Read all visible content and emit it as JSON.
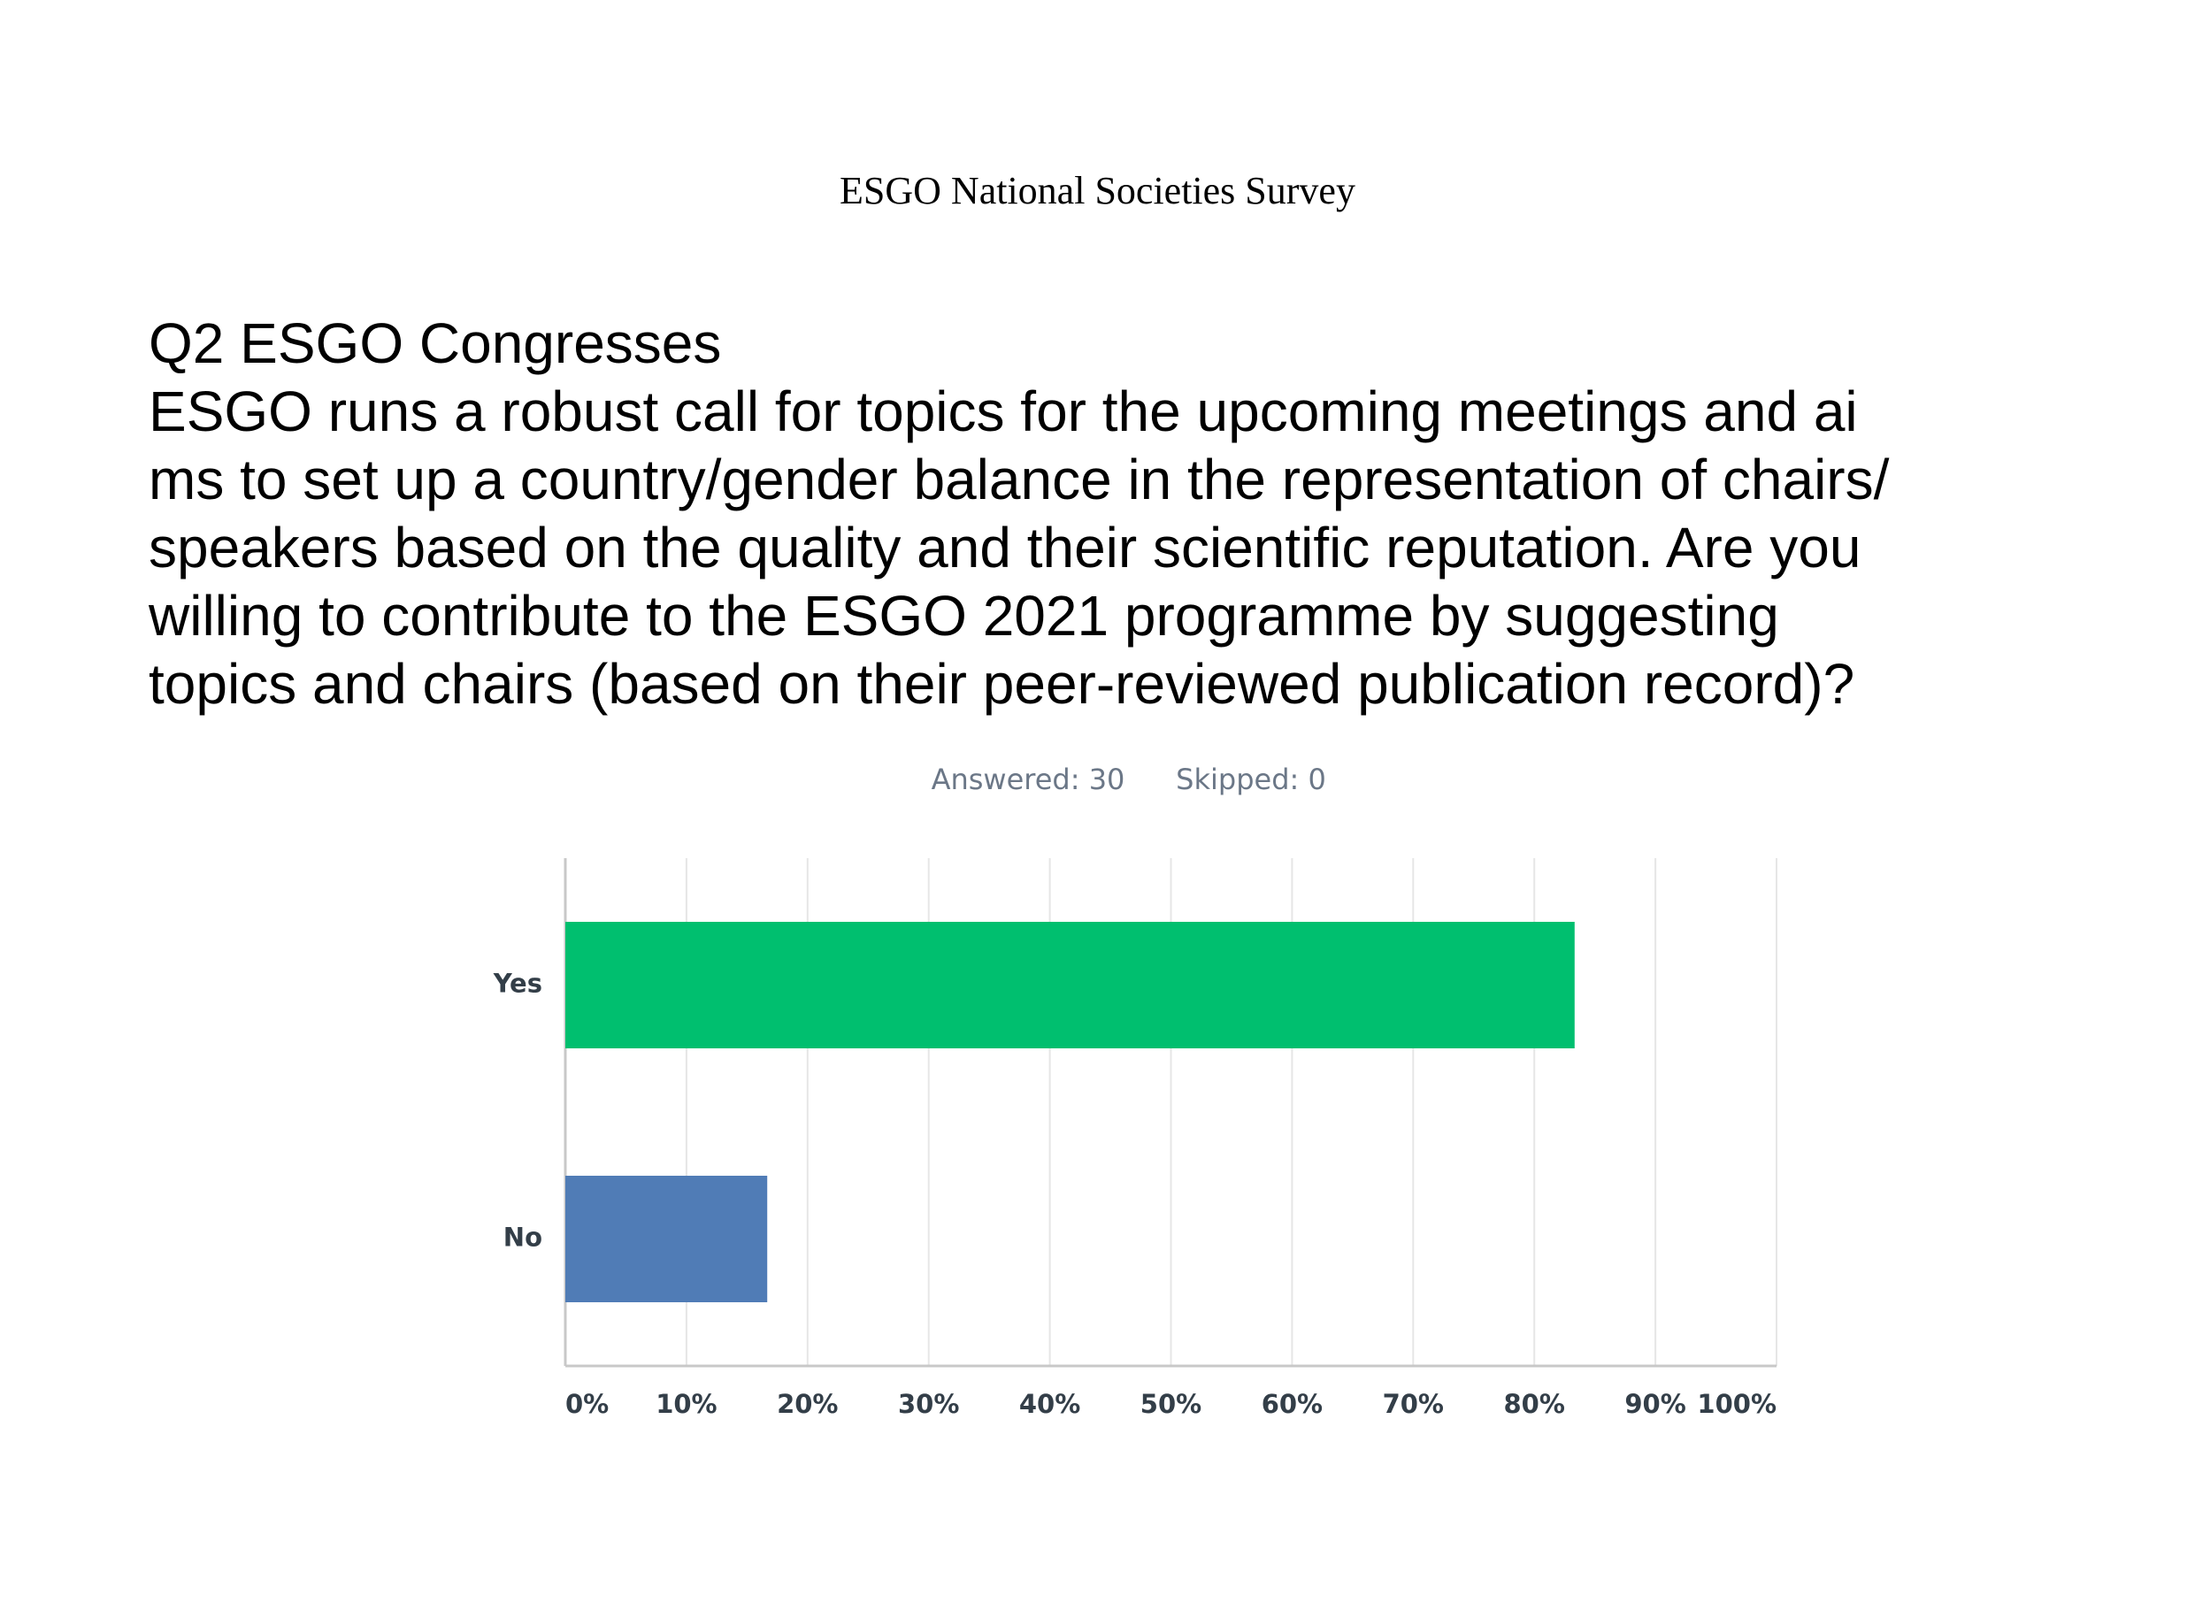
{
  "header": {
    "title": "ESGO National Societies Survey"
  },
  "question": {
    "lines": [
      "Q2 ESGO Congresses",
      "ESGO runs a robust call for topics for the upcoming meetings and ai",
      "ms to set up a country/gender balance in the representation of chairs/",
      "speakers based on the quality and their scientific reputation. Are you",
      "willing to contribute to the ESGO 2021 programme by suggesting",
      "topics and chairs (based on their peer-reviewed publication record)?"
    ]
  },
  "chart_data": {
    "type": "bar",
    "answered": "Answered: 30",
    "skipped": "Skipped: 0",
    "categories": [
      "Yes",
      "No"
    ],
    "values": [
      83.33,
      16.67
    ],
    "colors": [
      "#00bf6f",
      "#507cb6"
    ],
    "xlim": [
      0,
      100
    ],
    "xticks": [
      {
        "value": 0,
        "label": "0%"
      },
      {
        "value": 10,
        "label": "10%"
      },
      {
        "value": 20,
        "label": "20%"
      },
      {
        "value": 30,
        "label": "30%"
      },
      {
        "value": 40,
        "label": "40%"
      },
      {
        "value": 50,
        "label": "50%"
      },
      {
        "value": 60,
        "label": "60%"
      },
      {
        "value": 70,
        "label": "70%"
      },
      {
        "value": 80,
        "label": "80%"
      },
      {
        "value": 90,
        "label": "90%"
      },
      {
        "value": 100,
        "label": "100%"
      }
    ],
    "grid": true
  }
}
